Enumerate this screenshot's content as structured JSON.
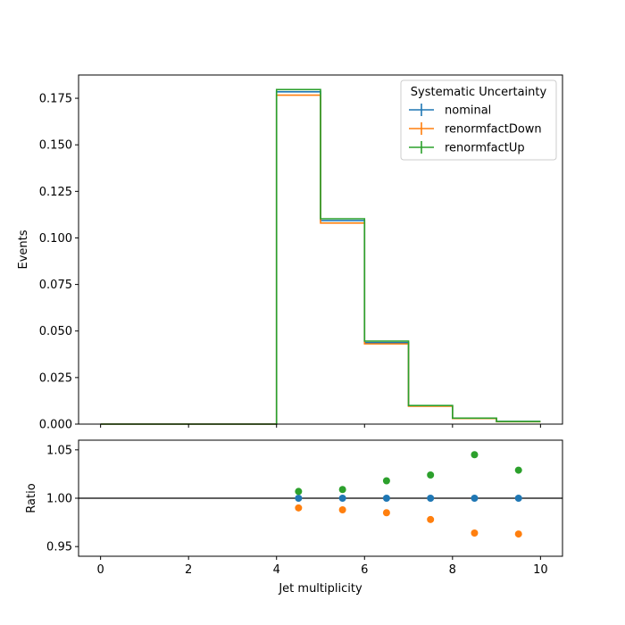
{
  "chart_data": [
    {
      "type": "line",
      "panel": "main",
      "drawstyle": "steps",
      "ylabel": "Events",
      "xlim": [
        -0.5,
        10.5
      ],
      "ylim": [
        0.0,
        0.1875
      ],
      "yticks": [
        0.0,
        0.025,
        0.05,
        0.075,
        0.1,
        0.125,
        0.15,
        0.175
      ],
      "ytick_labels": [
        "0.000",
        "0.025",
        "0.050",
        "0.075",
        "0.100",
        "0.125",
        "0.150",
        "0.175"
      ],
      "xticks": [
        0,
        2,
        4,
        6,
        8,
        10
      ],
      "bin_edges": [
        0,
        1,
        2,
        3,
        4,
        5,
        6,
        7,
        8,
        9,
        10
      ],
      "legend": {
        "title": "Systematic Uncertainty",
        "placement": "upper right"
      },
      "series": [
        {
          "name": "nominal",
          "color": "#1f77b4",
          "values": [
            0,
            0,
            0,
            0,
            0.1785,
            0.1093,
            0.0438,
            0.0098,
            0.0031,
            0.0014
          ]
        },
        {
          "name": "renormfactDown",
          "color": "#ff7f0e",
          "values": [
            0,
            0,
            0,
            0,
            0.1767,
            0.108,
            0.0431,
            0.0096,
            0.003,
            0.0013
          ]
        },
        {
          "name": "renormfactUp",
          "color": "#2ca02c",
          "values": [
            0,
            0,
            0,
            0,
            0.1797,
            0.1103,
            0.0446,
            0.01,
            0.0032,
            0.0014
          ]
        }
      ]
    },
    {
      "type": "scatter",
      "panel": "ratio",
      "xlabel": "Jet multiplicity",
      "ylabel": "Ratio",
      "xlim": [
        -0.5,
        10.5
      ],
      "ylim": [
        0.94,
        1.06
      ],
      "yticks": [
        0.95,
        1.0,
        1.05
      ],
      "ytick_labels": [
        "0.95",
        "1.00",
        "1.05"
      ],
      "xticks": [
        0,
        2,
        4,
        6,
        8,
        10
      ],
      "xtick_labels": [
        "0",
        "2",
        "4",
        "6",
        "8",
        "10"
      ],
      "reference_line": 1.0,
      "x": [
        4.5,
        5.5,
        6.5,
        7.5,
        8.5,
        9.5
      ],
      "series": [
        {
          "name": "nominal",
          "color": "#1f77b4",
          "values": [
            1.0,
            1.0,
            1.0,
            1.0,
            1.0,
            1.0
          ]
        },
        {
          "name": "renormfactDown",
          "color": "#ff7f0e",
          "values": [
            0.99,
            0.988,
            0.985,
            0.978,
            0.964,
            0.963
          ]
        },
        {
          "name": "renormfactUp",
          "color": "#2ca02c",
          "values": [
            1.007,
            1.009,
            1.018,
            1.024,
            1.045,
            1.029
          ]
        }
      ]
    }
  ]
}
